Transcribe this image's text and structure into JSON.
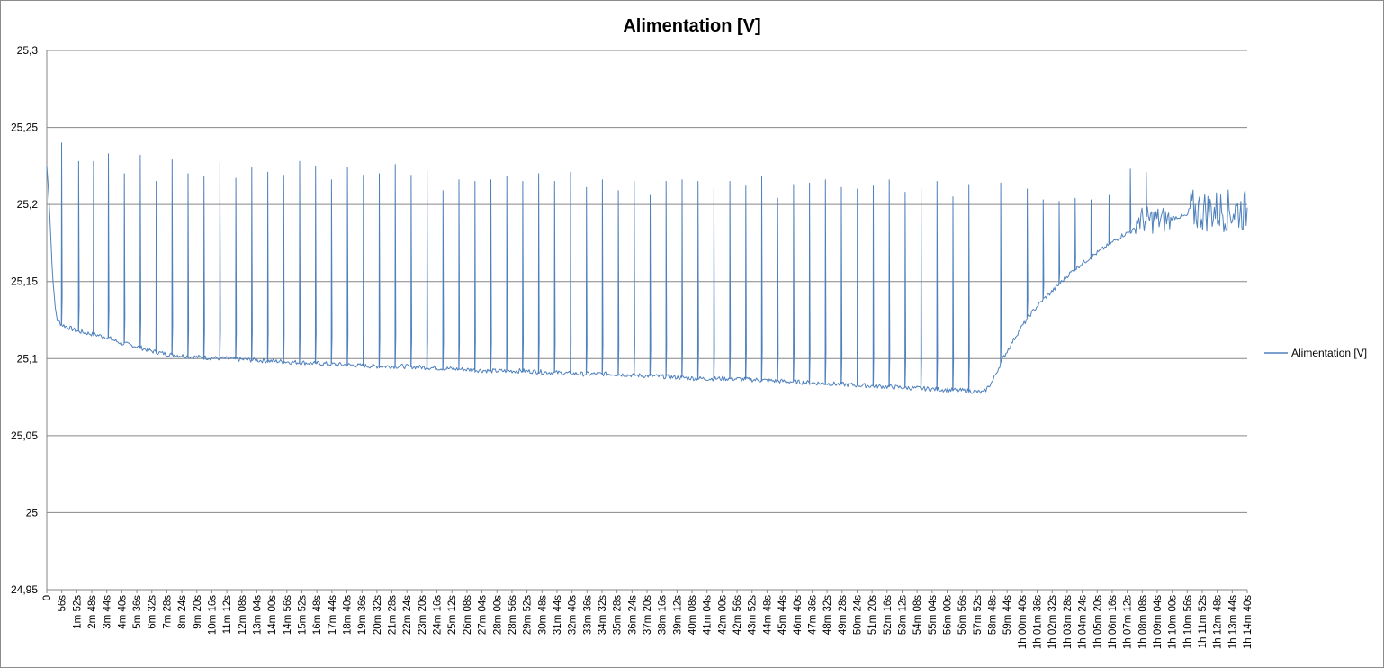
{
  "chart_data": {
    "type": "line",
    "title": "Alimentation [V]",
    "xlabel": "",
    "ylabel": "",
    "ylim": [
      24.95,
      25.3
    ],
    "yticks": [
      "25,3",
      "25,25",
      "25,2",
      "25,15",
      "25,1",
      "25,05",
      "25",
      "24,95"
    ],
    "ytick_values": [
      25.3,
      25.25,
      25.2,
      25.15,
      25.1,
      25.05,
      25.0,
      24.95
    ],
    "grid": true,
    "legend_position": "right",
    "series_color": "#4f81bd",
    "x_unit": "seconds",
    "x_range": [
      0,
      4520
    ],
    "x_tick_labels": [
      "0",
      "56s",
      "1m 52s",
      "2m 48s",
      "3m 44s",
      "4m 40s",
      "5m 36s",
      "6m 32s",
      "7m 28s",
      "8m 24s",
      "9m 20s",
      "10m 16s",
      "11m 12s",
      "12m 08s",
      "13m 04s",
      "14m 00s",
      "14m 56s",
      "15m 52s",
      "16m 48s",
      "17m 44s",
      "18m 40s",
      "19m 36s",
      "20m 32s",
      "21m 28s",
      "22m 24s",
      "23m 20s",
      "24m 16s",
      "25m 12s",
      "26m 08s",
      "27m 04s",
      "28m 00s",
      "28m 56s",
      "29m 52s",
      "30m 48s",
      "31m 44s",
      "32m 40s",
      "33m 36s",
      "34m 32s",
      "35m 28s",
      "36m 24s",
      "37m 20s",
      "38m 16s",
      "39m 12s",
      "40m 08s",
      "41m 04s",
      "42m 00s",
      "42m 56s",
      "43m 52s",
      "44m 48s",
      "45m 44s",
      "46m 40s",
      "47m 36s",
      "48m 32s",
      "49m 28s",
      "50m 24s",
      "51m 20s",
      "52m 16s",
      "53m 12s",
      "54m 08s",
      "55m 04s",
      "56m 00s",
      "56m 56s",
      "57m 52s",
      "58m 48s",
      "59m 44s",
      "1h 00m 40s",
      "1h 01m 36s",
      "1h 02m 32s",
      "1h 03m 28s",
      "1h 04m 24s",
      "1h 05m 20s",
      "1h 06m 16s",
      "1h 07m 12s",
      "1h 08m 08s",
      "1h 09m 04s",
      "1h 10m 00s",
      "1h 10m 56s",
      "1h 11m 52s",
      "1h 12m 48s",
      "1h 13m 44s",
      "1h 14m 40s"
    ],
    "series": [
      {
        "name": "Alimentation [V]",
        "baseline": [
          [
            0,
            25.225
          ],
          [
            10,
            25.2
          ],
          [
            20,
            25.16
          ],
          [
            30,
            25.135
          ],
          [
            40,
            25.125
          ],
          [
            56,
            25.122
          ],
          [
            112,
            25.118
          ],
          [
            168,
            25.116
          ],
          [
            224,
            25.114
          ],
          [
            280,
            25.11
          ],
          [
            336,
            25.108
          ],
          [
            392,
            25.105
          ],
          [
            448,
            25.103
          ],
          [
            504,
            25.102
          ],
          [
            560,
            25.101
          ],
          [
            672,
            25.1
          ],
          [
            784,
            25.099
          ],
          [
            896,
            25.098
          ],
          [
            1008,
            25.097
          ],
          [
            1120,
            25.096
          ],
          [
            1232,
            25.095
          ],
          [
            1344,
            25.095
          ],
          [
            1456,
            25.094
          ],
          [
            1568,
            25.093
          ],
          [
            1680,
            25.092
          ],
          [
            1792,
            25.092
          ],
          [
            1904,
            25.091
          ],
          [
            2016,
            25.09
          ],
          [
            2128,
            25.09
          ],
          [
            2240,
            25.089
          ],
          [
            2352,
            25.088
          ],
          [
            2464,
            25.087
          ],
          [
            2576,
            25.087
          ],
          [
            2688,
            25.086
          ],
          [
            2800,
            25.085
          ],
          [
            2912,
            25.084
          ],
          [
            3024,
            25.083
          ],
          [
            3136,
            25.082
          ],
          [
            3248,
            25.081
          ],
          [
            3360,
            25.08
          ],
          [
            3472,
            25.079
          ],
          [
            3528,
            25.078
          ],
          [
            3560,
            25.085
          ],
          [
            3600,
            25.1
          ],
          [
            3650,
            25.115
          ],
          [
            3700,
            25.128
          ],
          [
            3750,
            25.138
          ],
          [
            3800,
            25.146
          ],
          [
            3850,
            25.155
          ],
          [
            3900,
            25.162
          ],
          [
            3950,
            25.168
          ],
          [
            4000,
            25.174
          ],
          [
            4050,
            25.18
          ],
          [
            4100,
            25.184
          ],
          [
            4150,
            25.188
          ],
          [
            4200,
            25.19
          ],
          [
            4260,
            25.192
          ],
          [
            4320,
            25.193
          ],
          [
            4380,
            25.194
          ],
          [
            4440,
            25.195
          ],
          [
            4520,
            25.196
          ]
        ],
        "spikes": [
          [
            56,
            25.24
          ],
          [
            120,
            25.228
          ],
          [
            176,
            25.228
          ],
          [
            232,
            25.233
          ],
          [
            292,
            25.22
          ],
          [
            352,
            25.232
          ],
          [
            412,
            25.215
          ],
          [
            472,
            25.229
          ],
          [
            532,
            25.22
          ],
          [
            592,
            25.218
          ],
          [
            652,
            25.227
          ],
          [
            712,
            25.217
          ],
          [
            772,
            25.224
          ],
          [
            832,
            25.221
          ],
          [
            892,
            25.219
          ],
          [
            952,
            25.228
          ],
          [
            1012,
            25.225
          ],
          [
            1072,
            25.216
          ],
          [
            1132,
            25.224
          ],
          [
            1192,
            25.219
          ],
          [
            1252,
            25.22
          ],
          [
            1312,
            25.226
          ],
          [
            1372,
            25.219
          ],
          [
            1432,
            25.222
          ],
          [
            1492,
            25.209
          ],
          [
            1552,
            25.216
          ],
          [
            1612,
            25.215
          ],
          [
            1672,
            25.216
          ],
          [
            1732,
            25.218
          ],
          [
            1792,
            25.215
          ],
          [
            1852,
            25.22
          ],
          [
            1912,
            25.215
          ],
          [
            1972,
            25.221
          ],
          [
            2032,
            25.211
          ],
          [
            2092,
            25.216
          ],
          [
            2152,
            25.209
          ],
          [
            2212,
            25.215
          ],
          [
            2272,
            25.206
          ],
          [
            2332,
            25.215
          ],
          [
            2392,
            25.216
          ],
          [
            2452,
            25.215
          ],
          [
            2512,
            25.21
          ],
          [
            2572,
            25.215
          ],
          [
            2632,
            25.212
          ],
          [
            2692,
            25.218
          ],
          [
            2752,
            25.204
          ],
          [
            2812,
            25.213
          ],
          [
            2872,
            25.214
          ],
          [
            2932,
            25.216
          ],
          [
            2992,
            25.211
          ],
          [
            3052,
            25.21
          ],
          [
            3112,
            25.212
          ],
          [
            3172,
            25.216
          ],
          [
            3232,
            25.208
          ],
          [
            3292,
            25.21
          ],
          [
            3352,
            25.215
          ],
          [
            3412,
            25.205
          ],
          [
            3472,
            25.213
          ],
          [
            3592,
            25.214
          ],
          [
            3692,
            25.21
          ],
          [
            3752,
            25.203
          ],
          [
            3812,
            25.202
          ],
          [
            3872,
            25.204
          ],
          [
            3932,
            25.203
          ],
          [
            4000,
            25.206
          ],
          [
            4080,
            25.223
          ],
          [
            4140,
            25.221
          ]
        ],
        "noise_regions": [
          {
            "x_start": 4100,
            "x_end": 4230,
            "center": 25.19,
            "amplitude": 0.009
          },
          {
            "x_start": 4300,
            "x_end": 4520,
            "center": 25.196,
            "amplitude": 0.014
          }
        ]
      }
    ]
  },
  "legend": {
    "label": "Alimentation [V]"
  }
}
